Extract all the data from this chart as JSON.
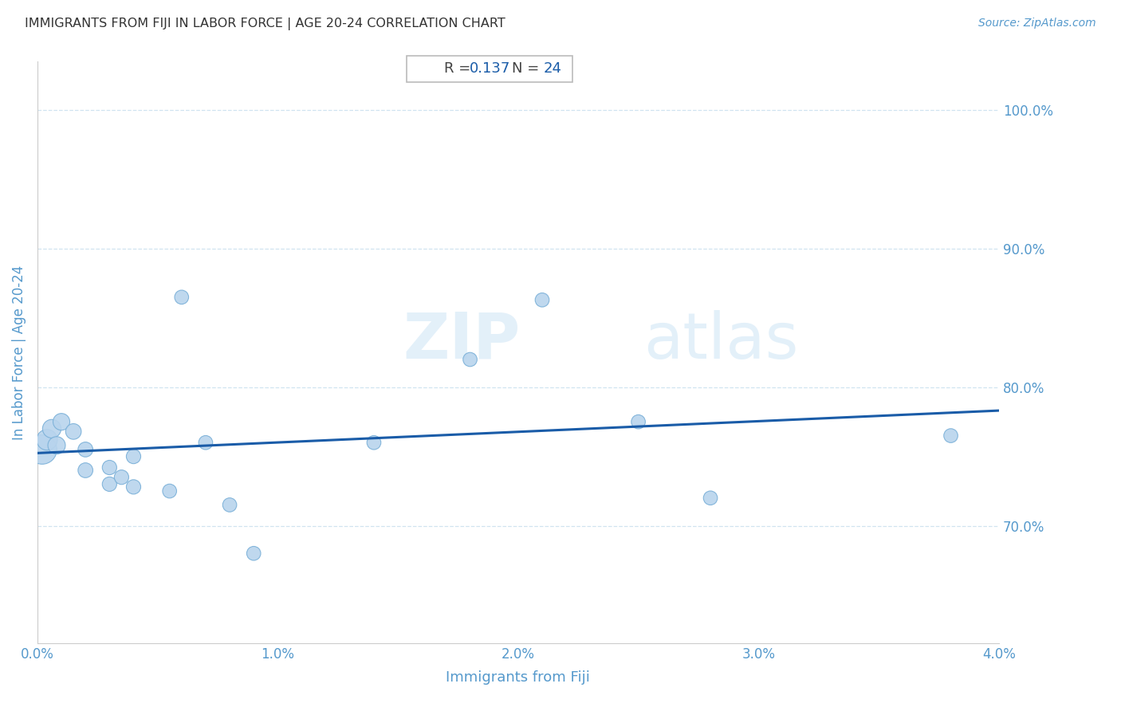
{
  "title": "IMMIGRANTS FROM FIJI IN LABOR FORCE | AGE 20-24 CORRELATION CHART",
  "source": "Source: ZipAtlas.com",
  "xlabel": "Immigrants from Fiji",
  "ylabel": "In Labor Force | Age 20-24",
  "R": 0.137,
  "N": 24,
  "xlim": [
    0.0,
    0.04
  ],
  "ylim": [
    0.615,
    1.035
  ],
  "xticks": [
    0.0,
    0.01,
    0.02,
    0.03,
    0.04
  ],
  "xticklabels": [
    "0.0%",
    "1.0%",
    "2.0%",
    "3.0%",
    "4.0%"
  ],
  "yticks": [
    0.7,
    0.8,
    0.9,
    1.0
  ],
  "yticklabels": [
    "70.0%",
    "80.0%",
    "90.0%",
    "100.0%"
  ],
  "scatter_color": "#b8d4ed",
  "scatter_edge_color": "#7ab0d8",
  "line_color": "#1a5ca8",
  "watermark_zip": "ZIP",
  "watermark_atlas": "atlas",
  "scatter_x": [
    0.0002,
    0.0004,
    0.0006,
    0.0008,
    0.001,
    0.0015,
    0.002,
    0.002,
    0.003,
    0.003,
    0.0035,
    0.004,
    0.004,
    0.0055,
    0.006,
    0.007,
    0.008,
    0.009,
    0.014,
    0.018,
    0.021,
    0.025,
    0.028,
    0.038
  ],
  "scatter_y": [
    0.755,
    0.762,
    0.77,
    0.758,
    0.775,
    0.768,
    0.74,
    0.755,
    0.73,
    0.742,
    0.735,
    0.728,
    0.75,
    0.725,
    0.865,
    0.76,
    0.715,
    0.68,
    0.76,
    0.82,
    0.863,
    0.775,
    0.72,
    0.765
  ],
  "title_color": "#333333",
  "axis_label_color": "#5599cc",
  "tick_label_color": "#5599cc",
  "source_color": "#5599cc",
  "grid_color": "#d0e4f0",
  "annotation_box_edge": "#bbbbbb",
  "scatter_sizes": [
    700,
    350,
    280,
    250,
    230,
    200,
    180,
    180,
    170,
    170,
    170,
    170,
    170,
    160,
    160,
    160,
    160,
    160,
    160,
    160,
    160,
    160,
    160,
    160
  ]
}
